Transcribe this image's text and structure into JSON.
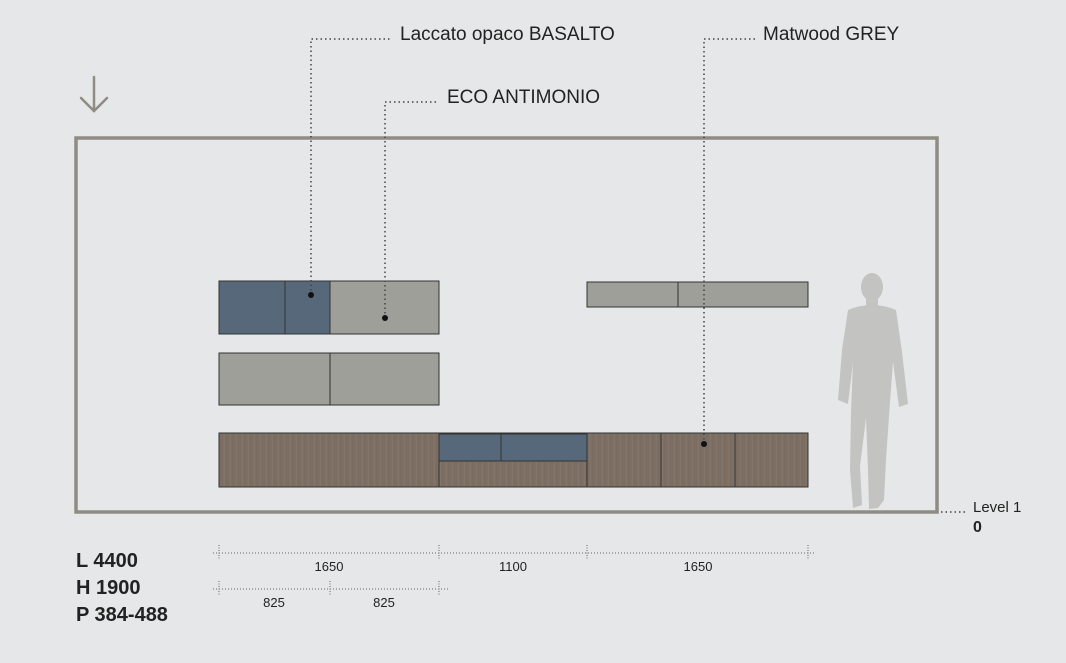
{
  "materials": {
    "basalto": "Laccato opaco BASALTO",
    "antimonio": "ECO ANTIMONIO",
    "grey": "Matwood GREY"
  },
  "level": {
    "label": "Level 1",
    "value": "0"
  },
  "dimensions": {
    "top_row": [
      "1650",
      "1100",
      "1650"
    ],
    "bottom_row": [
      "825",
      "825"
    ]
  },
  "specs": {
    "length": "L 4400",
    "height": "H 1900",
    "depth": "P 384-488"
  },
  "colors": {
    "background": "#e6e7e8",
    "frame": "#8f8c84",
    "basalto": "#56687a",
    "antimonio": "#9d9f98",
    "wood": "#7a6c62",
    "person": "#c3c3c1",
    "text": "#222222"
  }
}
